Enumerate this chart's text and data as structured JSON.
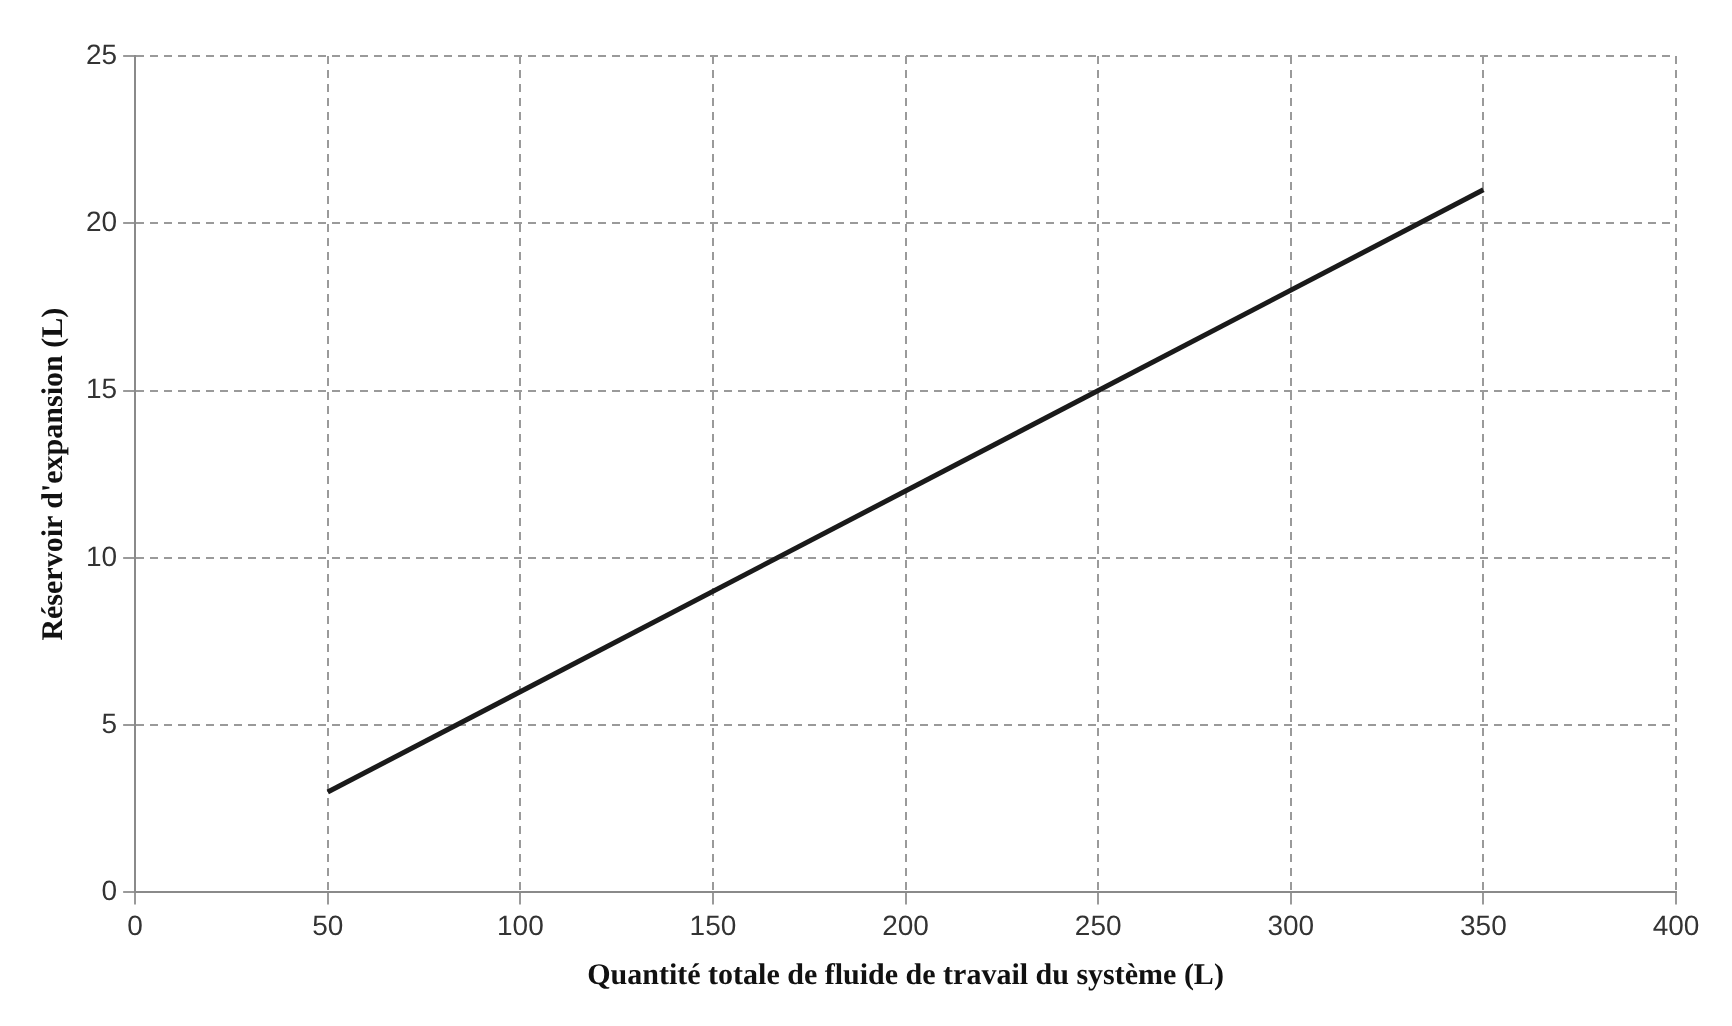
{
  "chart_data": {
    "type": "line",
    "xlabel": "Quantité totale de fluide de travail du système (L)",
    "ylabel": "Réservoir d'expansion (L)",
    "x": [
      50,
      350
    ],
    "series": [
      {
        "color": "#1a1a1a",
        "values": [
          3,
          21
        ]
      }
    ],
    "xlim": [
      0,
      400
    ],
    "xticks": [
      0,
      50,
      100,
      150,
      200,
      250,
      300,
      350,
      400
    ],
    "ylim": [
      0,
      25
    ],
    "yticks": [
      0,
      5,
      10,
      15,
      20,
      25
    ],
    "grid": true,
    "legend": false,
    "marker": "none",
    "line_style": "solid"
  }
}
